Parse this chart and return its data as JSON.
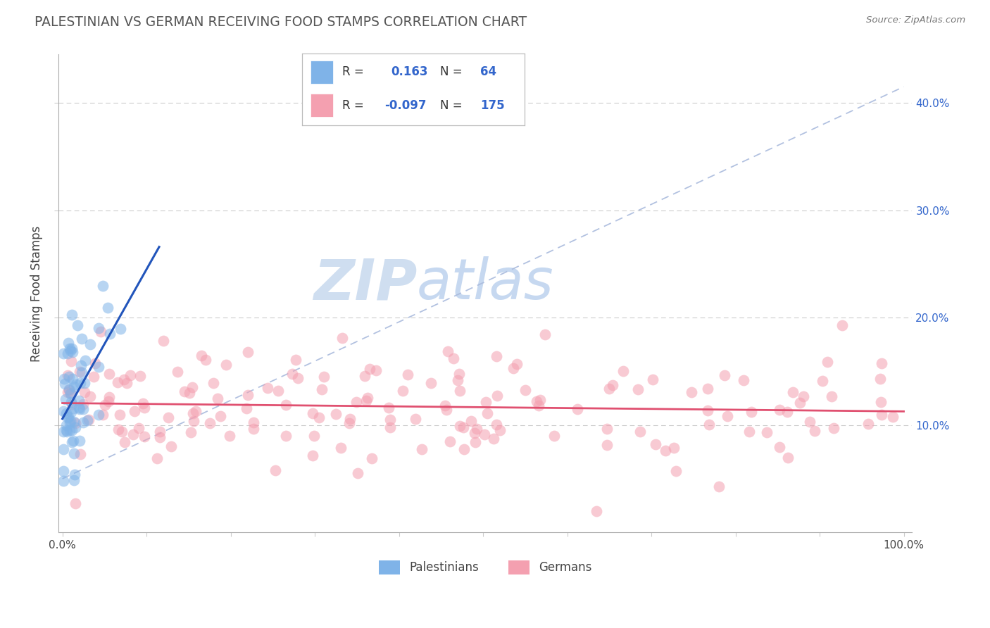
{
  "title": "PALESTINIAN VS GERMAN RECEIVING FOOD STAMPS CORRELATION CHART",
  "source": "Source: ZipAtlas.com",
  "ylabel": "Receiving Food Stamps",
  "palestinian_R": 0.163,
  "palestinian_N": 64,
  "german_R": -0.097,
  "german_N": 175,
  "blue_scatter_color": "#7FB3E8",
  "pink_scatter_color": "#F4A0B0",
  "blue_line_color": "#2255BB",
  "pink_line_color": "#E05070",
  "dash_line_color": "#AABBDD",
  "background_color": "#FFFFFF",
  "grid_color": "#CCCCCC",
  "right_yaxis_color": "#3366CC",
  "title_color": "#555555",
  "source_color": "#777777",
  "legend_R_label_color": "#333333",
  "legend_value_color": "#3366CC",
  "watermark_zip_color": "#C5D8EE",
  "watermark_atlas_color": "#A0C0E8",
  "scatter_size": 130,
  "scatter_alpha": 0.55
}
